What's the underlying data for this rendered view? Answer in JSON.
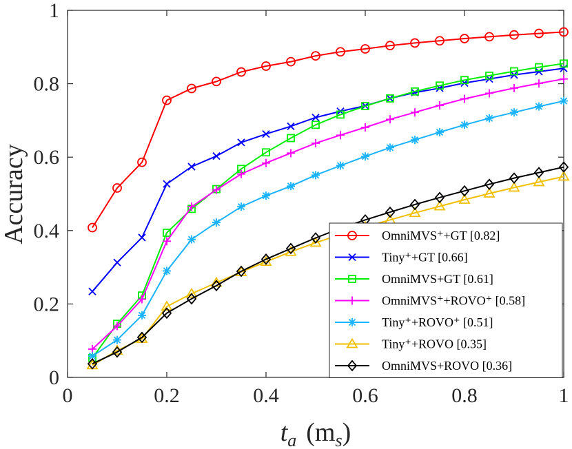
{
  "chart_data": {
    "type": "line",
    "title": "",
    "xlabel": "t_a (m_s)",
    "xlabel_main": "t",
    "xlabel_sub": "a",
    "xlabel_unit_open": "(m",
    "xlabel_unit_sub": "s",
    "xlabel_unit_close": ")",
    "ylabel": "Accuracy",
    "xlim": [
      0,
      1
    ],
    "ylim": [
      0,
      1
    ],
    "xticks": [
      "0",
      "0.2",
      "0.4",
      "0.6",
      "0.8",
      "1"
    ],
    "yticks": [
      "0",
      "0.2",
      "0.4",
      "0.6",
      "0.8",
      "1"
    ],
    "grid": false,
    "legend_position": "bottom-right",
    "x": [
      0.05,
      0.1,
      0.15,
      0.2,
      0.25,
      0.3,
      0.35,
      0.4,
      0.45,
      0.5,
      0.55,
      0.6,
      0.65,
      0.7,
      0.75,
      0.8,
      0.85,
      0.9,
      0.95,
      1.0
    ],
    "series": [
      {
        "name": "OmniMVS⁺+GT [0.82]",
        "color": "#ff0000",
        "marker": "circle",
        "values": [
          0.408,
          0.516,
          0.586,
          0.755,
          0.787,
          0.806,
          0.832,
          0.848,
          0.86,
          0.876,
          0.887,
          0.895,
          0.904,
          0.911,
          0.917,
          0.923,
          0.928,
          0.933,
          0.937,
          0.941
        ]
      },
      {
        "name": "Tiny⁺+GT [0.66]",
        "color": "#0000ff",
        "marker": "x",
        "values": [
          0.234,
          0.313,
          0.381,
          0.527,
          0.574,
          0.603,
          0.64,
          0.663,
          0.684,
          0.708,
          0.725,
          0.74,
          0.76,
          0.776,
          0.788,
          0.802,
          0.813,
          0.824,
          0.833,
          0.842
        ]
      },
      {
        "name": "OmniMVS+GT [0.61]",
        "color": "#00ee00",
        "marker": "square",
        "values": [
          0.053,
          0.146,
          0.223,
          0.394,
          0.459,
          0.513,
          0.568,
          0.613,
          0.652,
          0.688,
          0.716,
          0.739,
          0.76,
          0.779,
          0.795,
          0.81,
          0.822,
          0.834,
          0.845,
          0.855
        ]
      },
      {
        "name": "OmniMVS⁺+ROVO⁺ [0.58]",
        "color": "#ff00ff",
        "marker": "plus",
        "values": [
          0.077,
          0.14,
          0.213,
          0.371,
          0.465,
          0.511,
          0.554,
          0.584,
          0.611,
          0.638,
          0.66,
          0.681,
          0.703,
          0.722,
          0.741,
          0.759,
          0.774,
          0.788,
          0.801,
          0.813
        ]
      },
      {
        "name": "Tiny⁺+ROVO⁺ [0.51]",
        "color": "#1ab3ff",
        "marker": "asterisk",
        "values": [
          0.058,
          0.102,
          0.169,
          0.29,
          0.376,
          0.422,
          0.465,
          0.495,
          0.521,
          0.551,
          0.577,
          0.602,
          0.626,
          0.647,
          0.668,
          0.688,
          0.706,
          0.722,
          0.738,
          0.753
        ]
      },
      {
        "name": "Tiny⁺+ROVO [0.35]",
        "color": "#f0c000",
        "marker": "triangle",
        "values": [
          0.033,
          0.073,
          0.105,
          0.193,
          0.228,
          0.258,
          0.287,
          0.315,
          0.342,
          0.367,
          0.389,
          0.41,
          0.429,
          0.448,
          0.466,
          0.484,
          0.501,
          0.517,
          0.532,
          0.547
        ]
      },
      {
        "name": "OmniMVS+ROVO [0.36]",
        "color": "#000000",
        "marker": "diamond",
        "values": [
          0.037,
          0.069,
          0.109,
          0.175,
          0.214,
          0.25,
          0.289,
          0.322,
          0.351,
          0.38,
          0.406,
          0.429,
          0.45,
          0.471,
          0.49,
          0.508,
          0.526,
          0.543,
          0.558,
          0.573
        ]
      }
    ]
  }
}
